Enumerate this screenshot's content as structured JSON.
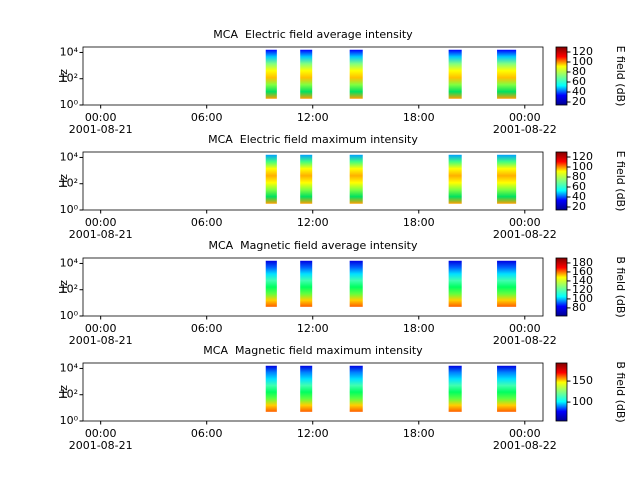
{
  "chart_data": [
    {
      "type": "spectrogram",
      "title": "MCA  Electric field average intensity",
      "ylabel": "Hz",
      "log_y": true,
      "ylim": [
        1,
        26000
      ],
      "yticks": [
        {
          "value": 1,
          "label": "10⁰"
        },
        {
          "value": 100,
          "label": "10²"
        },
        {
          "value": 10000,
          "label": "10⁴"
        }
      ],
      "xlim": [
        -1,
        25.03
      ],
      "xticks": [
        {
          "value": 0,
          "label": "00:00"
        },
        {
          "value": 6,
          "label": "06:00"
        },
        {
          "value": 12,
          "label": "12:00"
        },
        {
          "value": 18,
          "label": "18:00"
        },
        {
          "value": 24,
          "label": "00:00"
        }
      ],
      "x_dates": [
        {
          "value": 0,
          "label": "2001-08-21"
        },
        {
          "value": 24,
          "label": "2001-08-22"
        }
      ],
      "segments": [
        {
          "start": 9.34,
          "end": 9.97
        },
        {
          "start": 11.29,
          "end": 11.97
        },
        {
          "start": 14.09,
          "end": 14.83
        },
        {
          "start": 19.69,
          "end": 20.43
        },
        {
          "start": 22.43,
          "end": 23.51
        }
      ],
      "freq_range": [
        3,
        16000
      ],
      "segment_colors": [
        "#0000ff",
        "#00c8ff",
        "#80ff80",
        "#ffff00",
        "#ffc000",
        "#80ff40",
        "#00e060",
        "#ffa000"
      ],
      "colorbar": {
        "label": "E field (dB)",
        "clim": [
          14,
          130
        ],
        "ticks": [
          20,
          40,
          60,
          80,
          100,
          120
        ],
        "colors": [
          "#00008f",
          "#0000ff",
          "#00ffff",
          "#80ff80",
          "#ffff00",
          "#ff0000",
          "#800000"
        ]
      }
    },
    {
      "type": "spectrogram",
      "title": "MCA  Electric field maximum intensity",
      "ylabel": "Hz",
      "log_y": true,
      "ylim": [
        1,
        26000
      ],
      "yticks": [
        {
          "value": 1,
          "label": "10⁰"
        },
        {
          "value": 100,
          "label": "10²"
        },
        {
          "value": 10000,
          "label": "10⁴"
        }
      ],
      "xlim": [
        -1,
        25.03
      ],
      "xticks": [
        {
          "value": 0,
          "label": "00:00"
        },
        {
          "value": 6,
          "label": "06:00"
        },
        {
          "value": 12,
          "label": "12:00"
        },
        {
          "value": 18,
          "label": "18:00"
        },
        {
          "value": 24,
          "label": "00:00"
        }
      ],
      "x_dates": [
        {
          "value": 0,
          "label": "2001-08-21"
        },
        {
          "value": 24,
          "label": "2001-08-22"
        }
      ],
      "segments": [
        {
          "start": 9.34,
          "end": 9.97
        },
        {
          "start": 11.29,
          "end": 11.97
        },
        {
          "start": 14.09,
          "end": 14.83
        },
        {
          "start": 19.69,
          "end": 20.43
        },
        {
          "start": 22.43,
          "end": 23.51
        }
      ],
      "freq_range": [
        3,
        16000
      ],
      "segment_colors": [
        "#00a0ff",
        "#40ff80",
        "#ffff00",
        "#ffb000",
        "#ffff00",
        "#80ff40",
        "#00e060",
        "#ffa000"
      ],
      "colorbar": {
        "label": "E field (dB)",
        "clim": [
          14,
          130
        ],
        "ticks": [
          20,
          40,
          60,
          80,
          100,
          120
        ],
        "colors": [
          "#00008f",
          "#0000ff",
          "#00ffff",
          "#80ff80",
          "#ffff00",
          "#ff0000",
          "#800000"
        ]
      }
    },
    {
      "type": "spectrogram",
      "title": "MCA  Magnetic field average intensity",
      "ylabel": "Hz",
      "log_y": true,
      "ylim": [
        1,
        26000
      ],
      "yticks": [
        {
          "value": 1,
          "label": "10⁰"
        },
        {
          "value": 100,
          "label": "10²"
        },
        {
          "value": 10000,
          "label": "10⁴"
        }
      ],
      "xlim": [
        -1,
        25.03
      ],
      "xticks": [
        {
          "value": 0,
          "label": "00:00"
        },
        {
          "value": 6,
          "label": "06:00"
        },
        {
          "value": 12,
          "label": "12:00"
        },
        {
          "value": 18,
          "label": "18:00"
        },
        {
          "value": 24,
          "label": "00:00"
        }
      ],
      "x_dates": [
        {
          "value": 0,
          "label": "2001-08-21"
        },
        {
          "value": 24,
          "label": "2001-08-22"
        }
      ],
      "segments": [
        {
          "start": 9.34,
          "end": 9.97
        },
        {
          "start": 11.29,
          "end": 11.97
        },
        {
          "start": 14.09,
          "end": 14.83
        },
        {
          "start": 19.69,
          "end": 20.43
        },
        {
          "start": 22.43,
          "end": 23.51
        }
      ],
      "freq_range": [
        5,
        16000
      ],
      "segment_colors": [
        "#0000e0",
        "#0060ff",
        "#00e0ff",
        "#40ffb0",
        "#00ff60",
        "#60ff40",
        "#ffd000",
        "#ff6000"
      ],
      "colorbar": {
        "label": "B field (dB)",
        "clim": [
          62,
          191
        ],
        "ticks": [
          80,
          100,
          120,
          140,
          160,
          180
        ],
        "colors": [
          "#00008f",
          "#0000ff",
          "#00ffff",
          "#80ff80",
          "#ffff00",
          "#ff0000",
          "#800000"
        ]
      }
    },
    {
      "type": "spectrogram",
      "title": "MCA  Magnetic field maximum intensity",
      "ylabel": "Hz",
      "log_y": true,
      "ylim": [
        1,
        26000
      ],
      "yticks": [
        {
          "value": 1,
          "label": "10⁰"
        },
        {
          "value": 100,
          "label": "10²"
        },
        {
          "value": 10000,
          "label": "10⁴"
        }
      ],
      "xlim": [
        -1,
        25.03
      ],
      "xticks": [
        {
          "value": 0,
          "label": "00:00"
        },
        {
          "value": 6,
          "label": "06:00"
        },
        {
          "value": 12,
          "label": "12:00"
        },
        {
          "value": 18,
          "label": "18:00"
        },
        {
          "value": 24,
          "label": "00:00"
        }
      ],
      "x_dates": [
        {
          "value": 0,
          "label": "2001-08-21"
        },
        {
          "value": 24,
          "label": "2001-08-22"
        }
      ],
      "segments": [
        {
          "start": 9.34,
          "end": 9.97
        },
        {
          "start": 11.29,
          "end": 11.97
        },
        {
          "start": 14.09,
          "end": 14.83
        },
        {
          "start": 19.69,
          "end": 20.43
        },
        {
          "start": 22.43,
          "end": 23.51
        }
      ],
      "freq_range": [
        5,
        16000
      ],
      "segment_colors": [
        "#0000e0",
        "#0080ff",
        "#00e0ff",
        "#40ffb0",
        "#00ff60",
        "#60ff40",
        "#ffd000",
        "#ff6000"
      ],
      "colorbar": {
        "label": "B field (dB)",
        "clim": [
          55,
          193
        ],
        "ticks": [
          100,
          150
        ],
        "colors": [
          "#00008f",
          "#0000ff",
          "#00ffff",
          "#80ff80",
          "#ffff00",
          "#ff0000",
          "#800000"
        ]
      }
    }
  ]
}
